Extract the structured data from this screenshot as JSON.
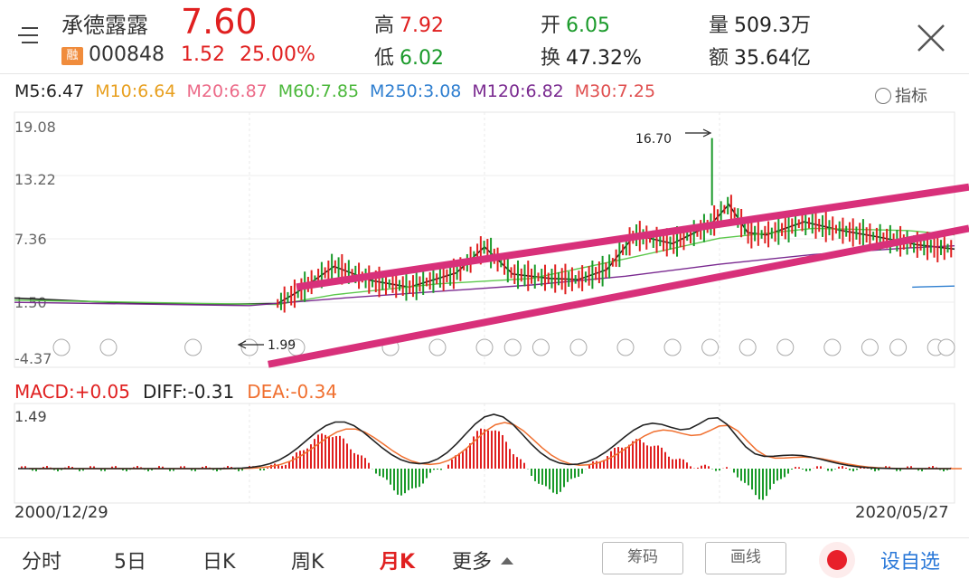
{
  "header": {
    "stock_name": "承德露露",
    "price": "7.60",
    "badge": "融",
    "code": "000848",
    "change": "1.52",
    "change_pct": "25.00%",
    "high_label": "高",
    "high": "7.92",
    "low_label": "低",
    "low": "6.02",
    "open_label": "开",
    "open": "6.05",
    "turnover_label": "换",
    "turnover": "47.32%",
    "volume_label": "量",
    "volume": "509.3万",
    "amount_label": "额",
    "amount": "35.64亿",
    "menu_icon": "menu-icon",
    "close_icon": "close-icon"
  },
  "ma": {
    "m5": "M5:6.47",
    "m10": "M10:6.64",
    "m20": "M20:6.87",
    "m60": "M60:7.85",
    "m250": "M250:3.08",
    "m120": "M120:6.82",
    "m30": "M30:7.25",
    "indicator_label": "指标",
    "colors": {
      "m5": "#222222",
      "m10": "#e8a020",
      "m20": "#ec6a88",
      "m60": "#5cc84c",
      "m250": "#2f7fd0",
      "m120": "#7a2a90",
      "m30": "#e05050"
    }
  },
  "chart_data": {
    "type": "line",
    "y_axis_labels": [
      "19.08",
      "13.22",
      "7.36",
      "1.50",
      "-4.37"
    ],
    "ylim": [
      -4.37,
      19.08
    ],
    "x_range": [
      "2000/12/29",
      "2020/05/27"
    ],
    "annotations": {
      "max": "16.70",
      "min": "1.99"
    },
    "series": [
      {
        "name": "M5",
        "x": [
          0,
          0.1,
          0.2,
          0.28,
          0.3,
          0.34,
          0.38,
          0.42,
          0.47,
          0.5,
          0.53,
          0.57,
          0.6,
          0.63,
          0.66,
          0.7,
          0.74,
          0.76,
          0.78,
          0.8,
          0.84,
          0.88,
          0.92,
          0.96,
          1.0
        ],
        "y": [
          2.0,
          1.6,
          1.4,
          1.5,
          2.5,
          4.9,
          3.6,
          3.0,
          4.3,
          6.7,
          4.2,
          3.8,
          3.7,
          4.6,
          7.8,
          7.0,
          8.7,
          10.6,
          8.0,
          7.8,
          9.0,
          8.2,
          7.6,
          6.9,
          6.5
        ]
      },
      {
        "name": "M60",
        "x": [
          0,
          0.2,
          0.28,
          0.34,
          0.45,
          0.55,
          0.65,
          0.75,
          0.85,
          0.95,
          1.0
        ],
        "y": [
          1.8,
          1.5,
          1.4,
          2.3,
          3.3,
          3.8,
          5.6,
          7.5,
          8.4,
          8.2,
          7.8
        ]
      },
      {
        "name": "M120",
        "x": [
          0,
          0.25,
          0.35,
          0.45,
          0.55,
          0.65,
          0.75,
          0.85,
          0.95,
          1.0
        ],
        "y": [
          1.6,
          1.3,
          2.0,
          2.6,
          3.2,
          4.0,
          5.1,
          6.0,
          6.6,
          6.8
        ]
      },
      {
        "name": "M250",
        "x": [
          0.955,
          1.0
        ],
        "y": [
          3.0,
          3.1
        ]
      }
    ],
    "trendlines": [
      {
        "from": [
          0.3,
          3.0
        ],
        "to": [
          1.0,
          12.2
        ]
      },
      {
        "from": [
          0.27,
          -4.1
        ],
        "to": [
          1.0,
          8.4
        ]
      }
    ],
    "q_markers": [
      0.05,
      0.1,
      0.19,
      0.25,
      0.3,
      0.4,
      0.45,
      0.5,
      0.53,
      0.56,
      0.6,
      0.65,
      0.7,
      0.74,
      0.78,
      0.82,
      0.87,
      0.91,
      0.94,
      0.98,
      1.0
    ]
  },
  "macd": {
    "macd_label": "MACD:+0.05",
    "diff_label": "DIFF:-0.31",
    "dea_label": "DEA:-0.34",
    "top_label": "1.49",
    "colors": {
      "macd": "#e02020",
      "diff": "#222222",
      "dea": "#f07030"
    }
  },
  "dates": {
    "start": "2000/12/29",
    "end": "2020/05/27"
  },
  "bottom": {
    "tabs": [
      "分时",
      "5日",
      "日K",
      "周K",
      "月K",
      "更多"
    ],
    "active_tab": "月K",
    "chip_btn": "筹码",
    "draw_btn": "画线",
    "add_fav": "设自选"
  }
}
